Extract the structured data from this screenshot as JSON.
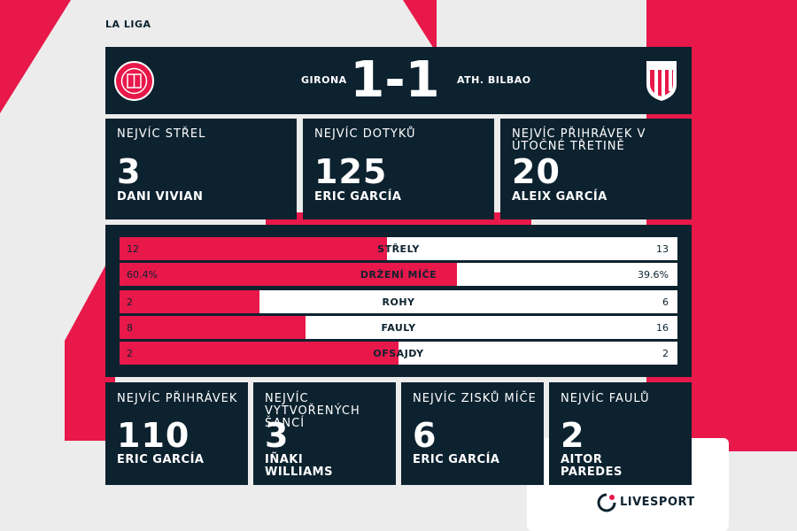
{
  "league": "LA LIGA",
  "header": {
    "home_team": "GIRONA",
    "away_team": "ATH. BILBAO",
    "score": "1-1",
    "home_logo_text": "GIRONA"
  },
  "top_stats": [
    {
      "label": "NEJVÍC STŘEL",
      "value": "3",
      "player": "DANI VIVIAN"
    },
    {
      "label": "NEJVÍC DOTYKŮ",
      "value": "125",
      "player": "ERIC GARCÍA"
    },
    {
      "label": "NEJVÍC PŘIHRÁVEK V ÚTOČNÉ TŘETINĚ",
      "value": "20",
      "player": "ALEIX GARCÍA"
    }
  ],
  "comparison": [
    {
      "label": "STŘELY",
      "home": "12",
      "away": "13",
      "home_share": 0.48
    },
    {
      "label": "DRŽENÍ MÍČE",
      "home": "60.4%",
      "away": "39.6%",
      "home_share": 0.604
    },
    {
      "label": "ROHY",
      "home": "2",
      "away": "6",
      "home_share": 0.25
    },
    {
      "label": "FAULY",
      "home": "8",
      "away": "16",
      "home_share": 0.333
    },
    {
      "label": "OFSAJDY",
      "home": "2",
      "away": "2",
      "home_share": 0.5
    }
  ],
  "bottom_stats": [
    {
      "label": "NEJVÍC PŘIHRÁVEK",
      "value": "110",
      "player": "ERIC GARCÍA"
    },
    {
      "label": "NEJVÍC VYTVOŘENÝCH ŠANCÍ",
      "value": "3",
      "player": "IÑAKI WILLIAMS"
    },
    {
      "label": "NEJVÍC ZISKŮ MÍČE",
      "value": "6",
      "player": "ERIC GARCÍA"
    },
    {
      "label": "NEJVÍC FAULŮ",
      "value": "2",
      "player": "AITOR PAREDES"
    }
  ],
  "brand": "LIVESPORT",
  "colors": {
    "accent": "#e8184a",
    "panel": "#0d222f",
    "background": "#ececec"
  }
}
